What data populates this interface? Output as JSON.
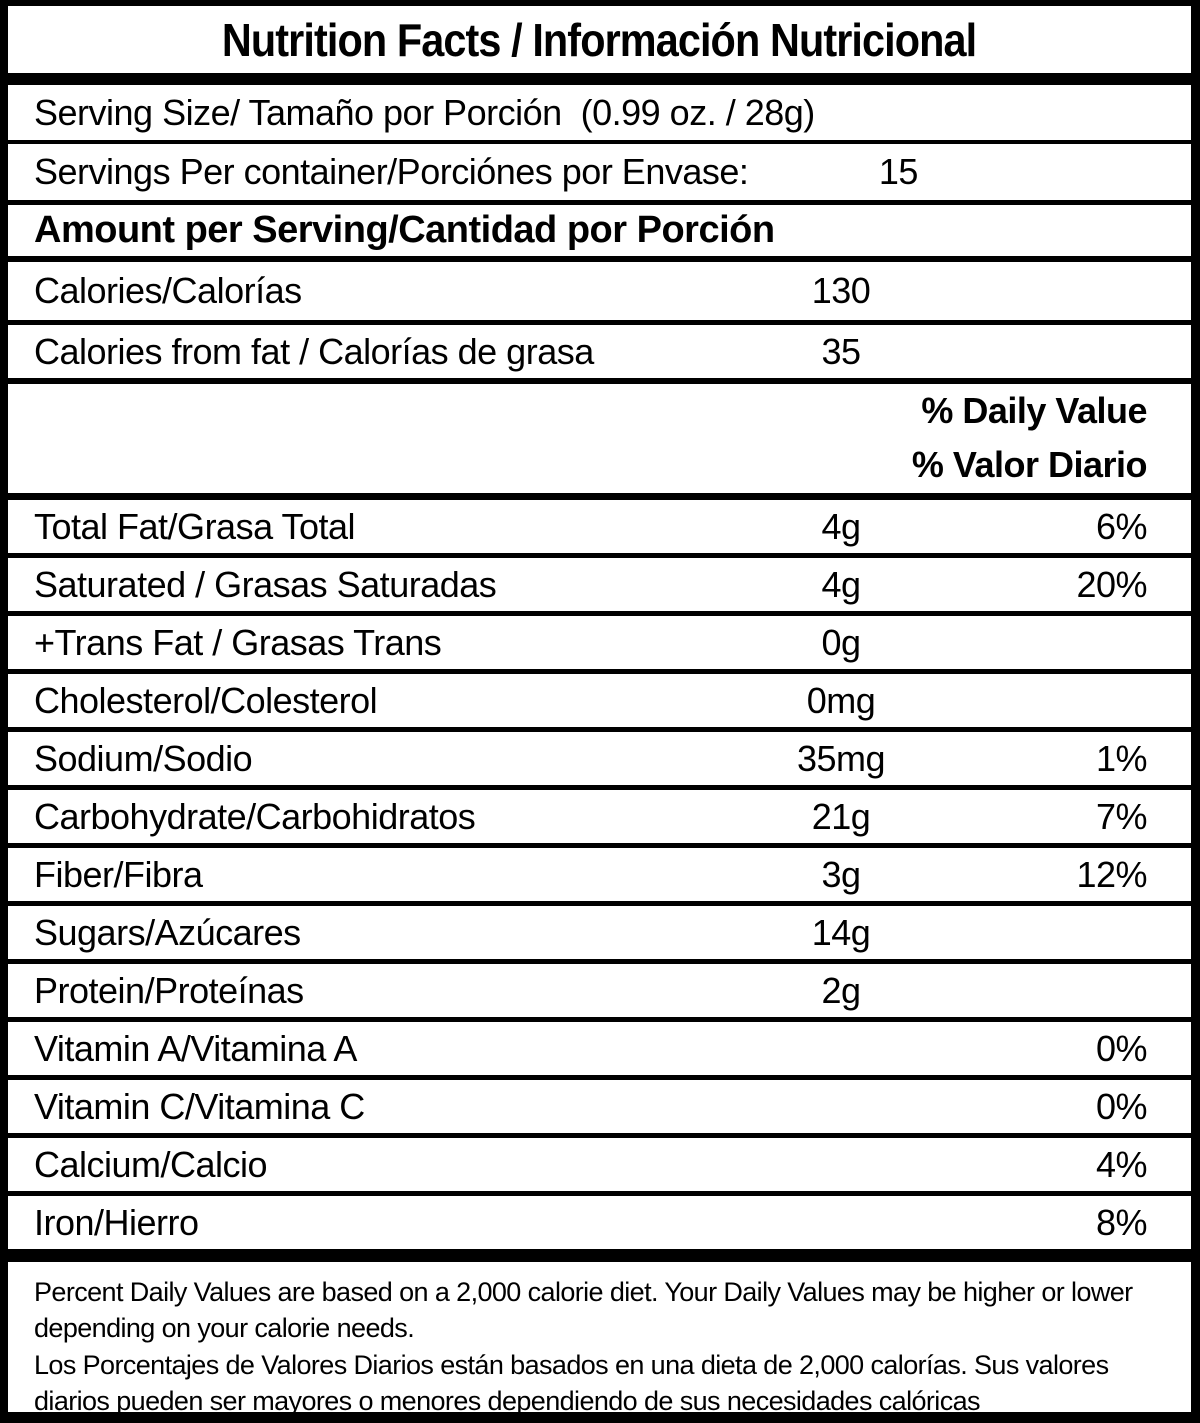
{
  "label": {
    "title": "Nutrition Facts / Información Nutricional",
    "serving_size_row": {
      "label": "Serving Size/ Tamaño por Porción  (0.99 oz. / 28g)"
    },
    "servings_row": {
      "label": "Servings Per container/Porciónes por Envase:",
      "value": "15"
    },
    "amount_header": "Amount per Serving/Cantidad por Porción",
    "calories_rows": [
      {
        "label": "Calories/Calorías",
        "amount": "130"
      },
      {
        "label": "Calories from fat / Calorías de grasa",
        "amount": "35"
      }
    ],
    "daily_value_header": {
      "line1": "% Daily Value",
      "line2": "% Valor Diario"
    },
    "nutrient_rows": [
      {
        "label": "Total Fat/Grasa Total",
        "amount": "4g",
        "percent": "6%"
      },
      {
        "label": "Saturated / Grasas Saturadas",
        "amount": "4g",
        "percent": "20%"
      },
      {
        "label": "+Trans Fat / Grasas Trans",
        "amount": "0g",
        "percent": ""
      },
      {
        "label": "Cholesterol/Colesterol",
        "amount": "0mg",
        "percent": ""
      },
      {
        "label": "Sodium/Sodio",
        "amount": "35mg",
        "percent": "1%"
      },
      {
        "label": "Carbohydrate/Carbohidratos",
        "amount": "21g",
        "percent": "7%"
      },
      {
        "label": "Fiber/Fibra",
        "amount": "3g",
        "percent": "12%"
      },
      {
        "label": "Sugars/Azúcares",
        "amount": "14g",
        "percent": ""
      },
      {
        "label": "Protein/Proteínas",
        "amount": "2g",
        "percent": ""
      },
      {
        "label": "Vitamin A/Vitamina A",
        "amount": "",
        "percent": "0%"
      },
      {
        "label": "Vitamin C/Vitamina C",
        "amount": "",
        "percent": "0%"
      },
      {
        "label": "Calcium/Calcio",
        "amount": "",
        "percent": "4%"
      },
      {
        "label": "Iron/Hierro",
        "amount": "",
        "percent": "8%"
      }
    ],
    "footnote_en": "Percent Daily Values are based on a 2,000 calorie diet. Your Daily Values may be higher or lower depending on your calorie needs.",
    "footnote_es": "Los Porcentajes de Valores Diarios están basados en una dieta de 2,000 calorías. Sus valores diarios pueden ser mayores o menores dependiendo de sus necesidades calóricas",
    "colors": {
      "text": "#000000",
      "background": "#ffffff",
      "border": "#000000"
    }
  }
}
